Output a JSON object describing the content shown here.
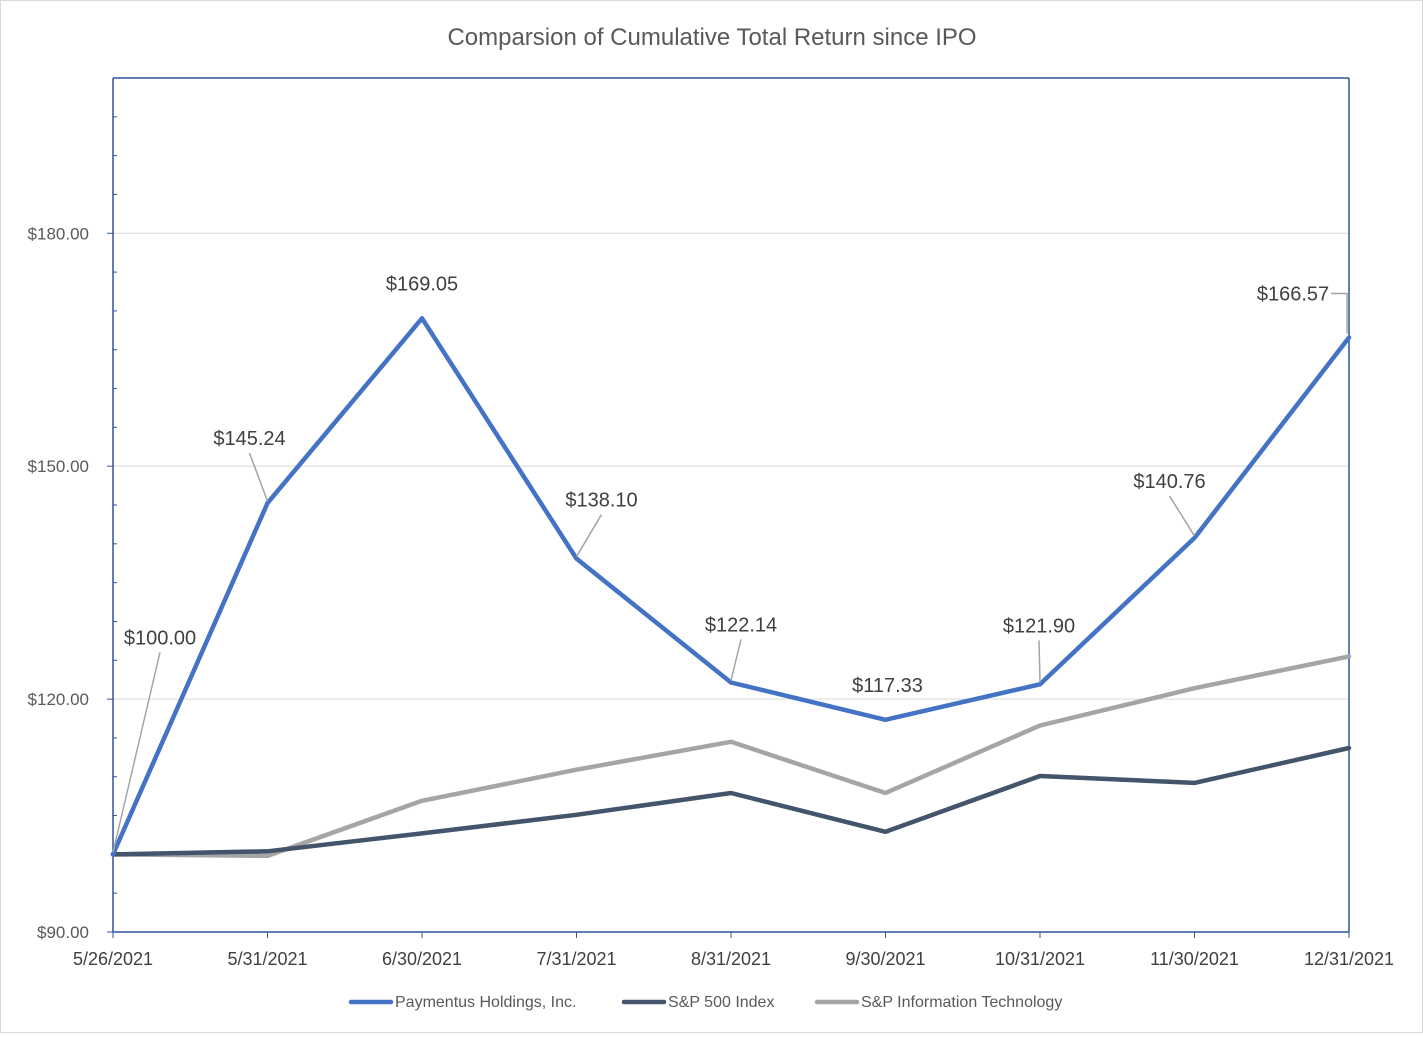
{
  "chart_data": {
    "type": "line",
    "title": "Comparsion of Cumulative Total Return since IPO",
    "xlabel": "",
    "ylabel": "",
    "categories": [
      "5/26/2021",
      "5/31/2021",
      "6/30/2021",
      "7/31/2021",
      "8/31/2021",
      "9/30/2021",
      "10/31/2021",
      "11/30/2021",
      "12/31/2021"
    ],
    "ylim": [
      90,
      200
    ],
    "yticks": [
      90,
      120,
      150,
      180
    ],
    "ytick_labels": [
      "$90.00",
      "$120.00",
      "$150.00",
      "$180.00"
    ],
    "grid": true,
    "legend_position": "bottom",
    "series": [
      {
        "name": "Paymentus Holdings, Inc.",
        "color": "#4472C4",
        "values": [
          100.0,
          145.24,
          169.05,
          138.1,
          122.14,
          117.33,
          121.9,
          140.76,
          166.57
        ],
        "labels": [
          "$100.00",
          "$145.24",
          "$169.05",
          "$138.10",
          "$122.14",
          "$117.33",
          "$121.90",
          "$140.76",
          "$166.57"
        ]
      },
      {
        "name": "S&P 500 Index",
        "color": "#44546A",
        "values": [
          100.0,
          100.4,
          102.7,
          105.1,
          107.9,
          102.9,
          110.1,
          109.2,
          113.7
        ]
      },
      {
        "name": "S&P Information Technology",
        "color": "#A5A5A5",
        "values": [
          100.0,
          99.8,
          106.9,
          110.9,
          114.5,
          107.9,
          116.6,
          121.4,
          125.5
        ]
      }
    ]
  }
}
